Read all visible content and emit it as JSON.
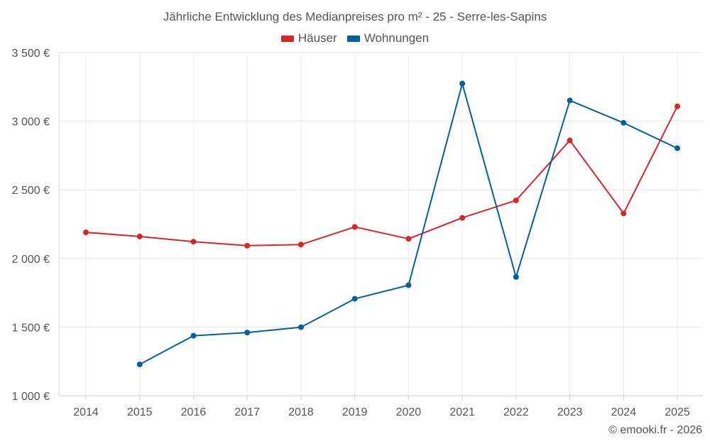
{
  "chart_data": {
    "type": "line",
    "title": "Jährliche Entwicklung des Medianpreises pro m² - 25 - Serre-les-Sapins",
    "xlabel": "",
    "ylabel": "",
    "categories": [
      "2014",
      "2015",
      "2016",
      "2017",
      "2018",
      "2019",
      "2020",
      "2021",
      "2022",
      "2023",
      "2024",
      "2025"
    ],
    "ylim": [
      1000,
      3500
    ],
    "yticks": [
      1000,
      1500,
      2000,
      2500,
      3000,
      3500
    ],
    "ytick_labels": [
      "1 000 €",
      "1 500 €",
      "2 000 €",
      "2 500 €",
      "3 000 €",
      "3 500 €"
    ],
    "grid": true,
    "legend_position": "top-center",
    "series": [
      {
        "name": "Häuser",
        "color": "#d62728",
        "values": [
          2190,
          2160,
          2122,
          2093,
          2101,
          2230,
          2143,
          2296,
          2423,
          2860,
          2328,
          3108
        ]
      },
      {
        "name": "Wohnungen",
        "color": "#00629b",
        "values": [
          null,
          1228,
          1437,
          1460,
          1499,
          1706,
          1805,
          3274,
          1865,
          3151,
          2988,
          2803
        ]
      }
    ]
  },
  "credit": "© emooki.fr - 2026"
}
